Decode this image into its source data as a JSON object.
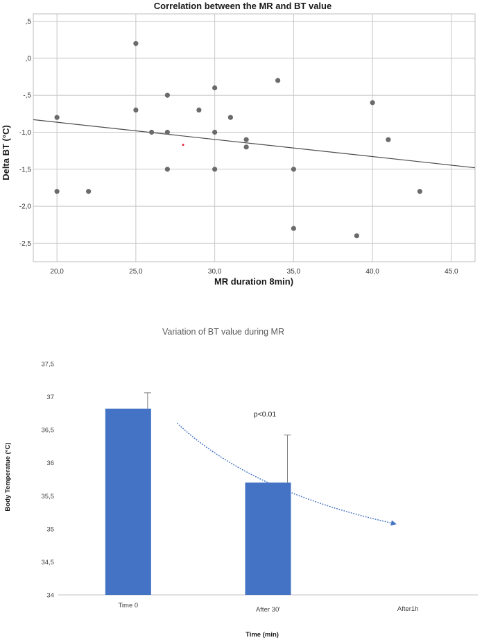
{
  "chart_data": [
    {
      "type": "scatter",
      "title": "Correlation between the MR and BT value",
      "xlabel": "MR duration 8min)",
      "ylabel": "Delta BT (°C)",
      "xlim": [
        18.5,
        46.5
      ],
      "ylim": [
        -2.75,
        0.6
      ],
      "x_ticks": [
        20,
        25,
        30,
        35,
        40,
        45
      ],
      "x_tick_labels": [
        "20,0",
        "25,0",
        "30,0",
        "35,0",
        "40,0",
        "45,0"
      ],
      "y_ticks": [
        0.5,
        0,
        -0.5,
        -1,
        -1.5,
        -2,
        -2.5
      ],
      "y_tick_labels": [
        ",5",
        ",0",
        "-,5",
        "-1,0",
        "-1,5",
        "-2,0",
        "-2,5"
      ],
      "grid": true,
      "points": [
        {
          "x": 20,
          "y": -0.8
        },
        {
          "x": 20,
          "y": -1.8
        },
        {
          "x": 22,
          "y": -1.8
        },
        {
          "x": 25,
          "y": 0.2
        },
        {
          "x": 25,
          "y": -0.7
        },
        {
          "x": 26,
          "y": -1.0
        },
        {
          "x": 27,
          "y": -0.5
        },
        {
          "x": 27,
          "y": -1.0
        },
        {
          "x": 27,
          "y": -1.5
        },
        {
          "x": 29,
          "y": -0.7
        },
        {
          "x": 30,
          "y": -0.4
        },
        {
          "x": 30,
          "y": -1.0
        },
        {
          "x": 30,
          "y": -1.5
        },
        {
          "x": 31,
          "y": -0.8
        },
        {
          "x": 32,
          "y": -1.1
        },
        {
          "x": 32,
          "y": -1.2
        },
        {
          "x": 34,
          "y": -0.3
        },
        {
          "x": 35,
          "y": -1.5
        },
        {
          "x": 35,
          "y": -2.3
        },
        {
          "x": 39,
          "y": -2.4
        },
        {
          "x": 40,
          "y": -0.6
        },
        {
          "x": 41,
          "y": -1.1
        },
        {
          "x": 43,
          "y": -1.8
        }
      ],
      "highlight_point": {
        "x": 28,
        "y": -1.17,
        "color": "#e8132b"
      },
      "regression_line": {
        "x": [
          18.5,
          46.5
        ],
        "y": [
          -0.83,
          -1.48
        ]
      },
      "point_color": "#6b6b6b"
    },
    {
      "type": "bar",
      "title": "Variation of BT value during MR",
      "xlabel": "Time (min)",
      "ylabel": "Body Temperatue (°C)",
      "categories": [
        "Time 0",
        "After 30'",
        "After1h"
      ],
      "values": [
        36.82,
        35.7,
        null
      ],
      "error_up": [
        0.24,
        0.72,
        null
      ],
      "ylim": [
        34,
        37.5
      ],
      "y_ticks": [
        34,
        34.5,
        35,
        35.5,
        36,
        36.5,
        37,
        37.5
      ],
      "y_tick_labels": [
        "34",
        "34,5",
        "35",
        "35,5",
        "36",
        "36,5",
        "37",
        "37,5"
      ],
      "bar_color": "#4472c4",
      "annotation": "p<0.01",
      "trend_curve": {
        "x": [
          0.35,
          1,
          1.9
        ],
        "y": [
          36.6,
          35.7,
          35.08
        ],
        "color": "#4472c4"
      }
    }
  ]
}
